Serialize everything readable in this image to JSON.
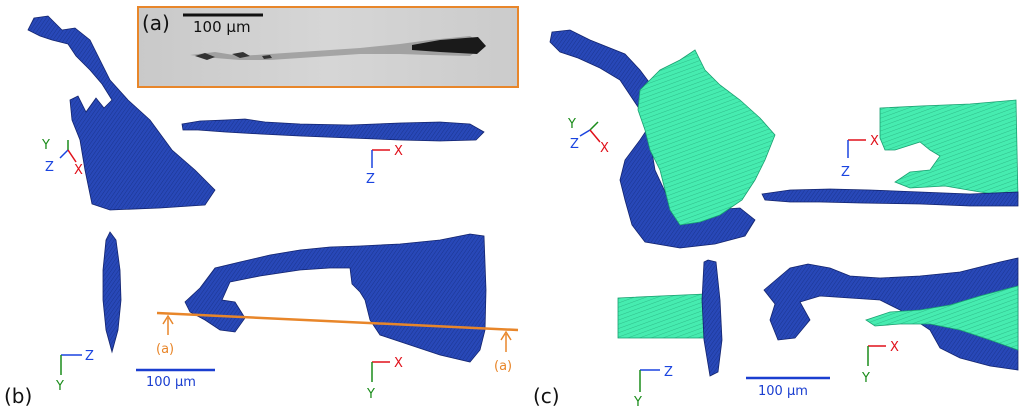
{
  "inset": {
    "label": "(a)",
    "scale_label": "100 µm"
  },
  "panel_b": {
    "label": "(b)",
    "scale_label": "100 µm",
    "marker_left": "(a)",
    "marker_right": "(a)",
    "axes_iso": {
      "y": "Y",
      "z": "Z",
      "x": "X"
    },
    "axes_top_right": {
      "x": "X",
      "z": "Z"
    },
    "axes_bottom_left": {
      "z": "Z",
      "y": "Y"
    },
    "axes_bottom_right": {
      "x": "X",
      "y": "Y"
    }
  },
  "panel_c": {
    "label": "(c)",
    "scale_label": "100 µm",
    "axes_iso": {
      "y": "Y",
      "z": "Z",
      "x": "X"
    },
    "axes_top_right": {
      "x": "X",
      "z": "Z"
    },
    "axes_bottom_left": {
      "z": "Z",
      "y": "Y"
    },
    "axes_bottom_right": {
      "x": "X",
      "y": "Y"
    }
  },
  "colors": {
    "blue_crack": "#2444b0",
    "blue_edge": "#13246e",
    "green_crack": "#3de8a8",
    "green_edge": "#1a9f70",
    "orange": "#e8862a",
    "axis_x": "#e0101a",
    "axis_y": "#1a8c1a",
    "axis_z": "#1a44e0",
    "scalebar": "#1a3ed0"
  }
}
